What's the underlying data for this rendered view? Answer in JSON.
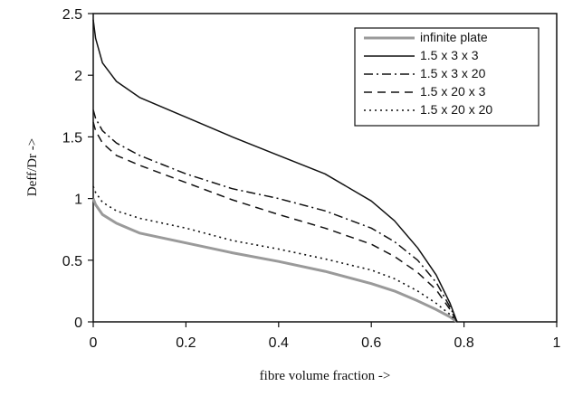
{
  "chart_data": {
    "type": "line",
    "xlabel": "fibre volume fraction ->",
    "ylabel": "Deff/Dr  ->",
    "xlim": [
      0,
      1
    ],
    "ylim": [
      0,
      2.5
    ],
    "xticks": [
      "0",
      "0.2",
      "0.4",
      "0.6",
      "0.8",
      "1"
    ],
    "yticks": [
      "0",
      "0.5",
      "1",
      "1.5",
      "2",
      "2.5"
    ],
    "grid": false,
    "legend_position": "top-right",
    "series": [
      {
        "name": "infinite plate",
        "style": "solid-gray-thick",
        "color": "#9a9a9a",
        "x": [
          0,
          0.005,
          0.02,
          0.05,
          0.1,
          0.2,
          0.3,
          0.4,
          0.5,
          0.6,
          0.65,
          0.7,
          0.74,
          0.77,
          0.785
        ],
        "y": [
          1.0,
          0.95,
          0.87,
          0.8,
          0.72,
          0.64,
          0.56,
          0.49,
          0.41,
          0.31,
          0.25,
          0.17,
          0.1,
          0.04,
          0
        ]
      },
      {
        "name": "1.5 x 3 x 3",
        "style": "solid",
        "color": "#111111",
        "x": [
          0,
          0.005,
          0.02,
          0.05,
          0.1,
          0.2,
          0.3,
          0.4,
          0.5,
          0.6,
          0.65,
          0.7,
          0.74,
          0.77,
          0.785
        ],
        "y": [
          2.45,
          2.3,
          2.1,
          1.95,
          1.82,
          1.66,
          1.5,
          1.35,
          1.2,
          0.98,
          0.82,
          0.6,
          0.38,
          0.15,
          0
        ]
      },
      {
        "name": "1.5 x 3 x 20",
        "style": "dash-dot",
        "color": "#111111",
        "x": [
          0,
          0.005,
          0.02,
          0.05,
          0.1,
          0.2,
          0.3,
          0.4,
          0.5,
          0.6,
          0.65,
          0.7,
          0.74,
          0.77,
          0.785
        ],
        "y": [
          1.72,
          1.65,
          1.55,
          1.45,
          1.35,
          1.2,
          1.08,
          1.0,
          0.9,
          0.76,
          0.65,
          0.5,
          0.32,
          0.12,
          0
        ]
      },
      {
        "name": "1.5 x 20 x 3",
        "style": "dashed",
        "color": "#111111",
        "x": [
          0,
          0.005,
          0.02,
          0.05,
          0.1,
          0.2,
          0.3,
          0.4,
          0.5,
          0.6,
          0.65,
          0.7,
          0.74,
          0.77,
          0.785
        ],
        "y": [
          1.62,
          1.55,
          1.45,
          1.35,
          1.27,
          1.13,
          0.99,
          0.87,
          0.76,
          0.63,
          0.53,
          0.4,
          0.26,
          0.1,
          0
        ]
      },
      {
        "name": "1.5 x 20 x 20",
        "style": "dotted",
        "color": "#111111",
        "x": [
          0,
          0.005,
          0.02,
          0.05,
          0.1,
          0.2,
          0.3,
          0.4,
          0.5,
          0.6,
          0.65,
          0.7,
          0.74,
          0.77,
          0.785
        ],
        "y": [
          1.1,
          1.05,
          0.97,
          0.9,
          0.84,
          0.76,
          0.66,
          0.59,
          0.51,
          0.42,
          0.35,
          0.25,
          0.15,
          0.06,
          0
        ]
      }
    ]
  }
}
